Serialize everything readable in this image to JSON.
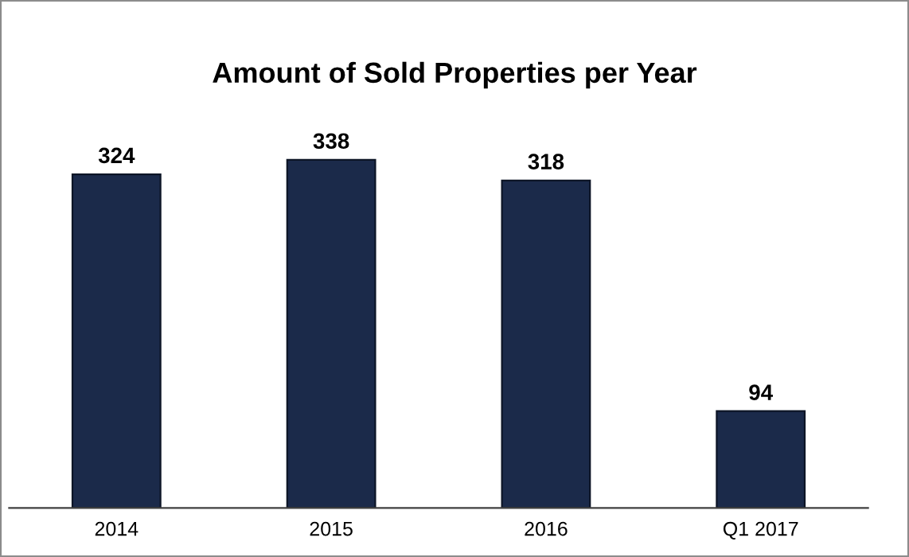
{
  "chart_data": {
    "type": "bar",
    "title": "Amount of Sold Properties per Year",
    "categories": [
      "2014",
      "2015",
      "2016",
      "Q1 2017"
    ],
    "values": [
      324,
      338,
      318,
      94
    ],
    "color": "#1b2a4a",
    "data_labels": true,
    "grid": false,
    "tick_labels": "x"
  }
}
